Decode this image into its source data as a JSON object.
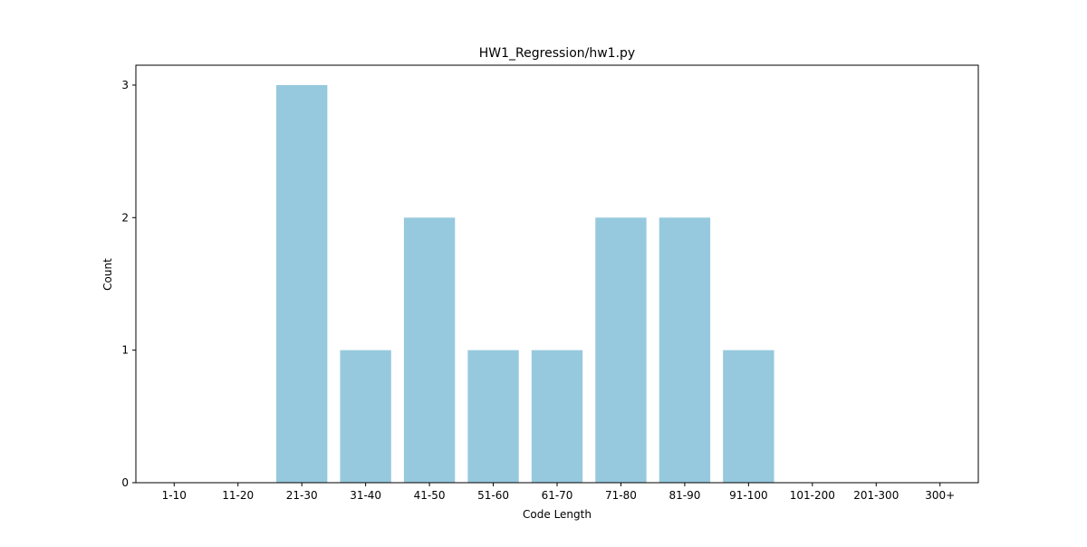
{
  "chart_data": {
    "type": "bar",
    "title": "HW1_Regression/hw1.py",
    "xlabel": "Code Length",
    "ylabel": "Count",
    "categories": [
      "1-10",
      "11-20",
      "21-30",
      "31-40",
      "41-50",
      "51-60",
      "61-70",
      "71-80",
      "81-90",
      "91-100",
      "101-200",
      "201-300",
      "300+"
    ],
    "values": [
      0,
      0,
      3,
      1,
      2,
      1,
      1,
      2,
      2,
      1,
      0,
      0,
      0
    ],
    "ylim": [
      0,
      3.15
    ],
    "yticks": [
      0,
      1,
      2,
      3
    ],
    "grid": false,
    "bar_color": "#96c9dd"
  }
}
